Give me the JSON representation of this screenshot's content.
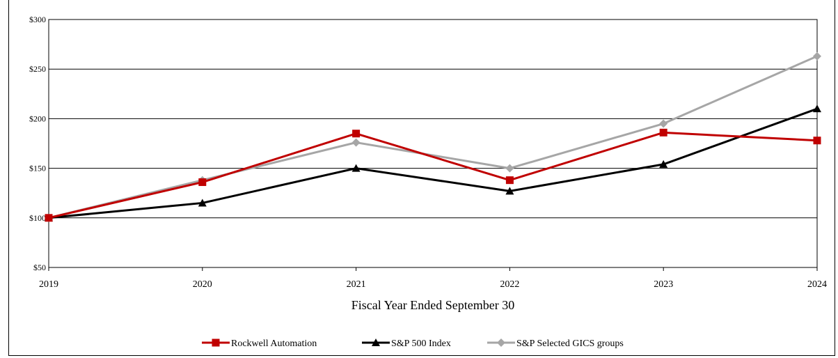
{
  "chart_data": {
    "type": "line",
    "title": "",
    "xlabel": "Fiscal Year Ended September 30",
    "ylabel": "",
    "categories": [
      "2019",
      "2020",
      "2021",
      "2022",
      "2023",
      "2024"
    ],
    "y_ticks": [
      "$50",
      "$100",
      "$150",
      "$200",
      "$250",
      "$300"
    ],
    "ylim": [
      50,
      300
    ],
    "grid": "horizontal",
    "legend_position": "bottom",
    "series": [
      {
        "name": "Rockwell Automation",
        "color": "#c00000",
        "marker": "square",
        "values": [
          100,
          136,
          185,
          138,
          186,
          178
        ]
      },
      {
        "name": "S&P 500 Index",
        "color": "#000000",
        "marker": "triangle",
        "values": [
          100,
          115,
          150,
          127,
          154,
          210
        ]
      },
      {
        "name": "S&P Selected GICS groups",
        "color": "#a6a6a6",
        "marker": "diamond",
        "values": [
          100,
          138,
          176,
          150,
          195,
          263
        ]
      }
    ]
  }
}
